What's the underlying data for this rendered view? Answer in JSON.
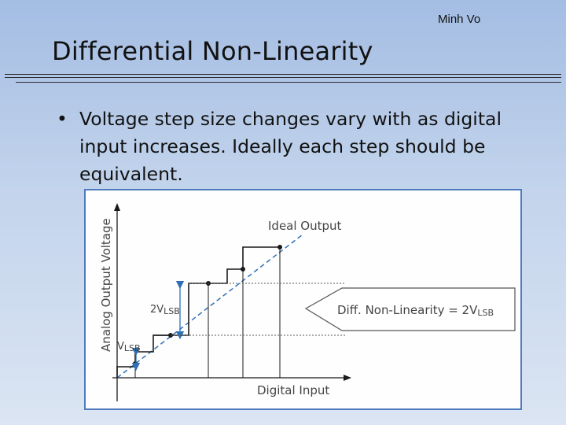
{
  "slide": {
    "author": "Minh Vo",
    "title": "Differential Non-Linearity",
    "bullet": "Voltage step size changes vary with as digital input increases. Ideally each step should be equivalent.",
    "bullet_symbol": "•"
  },
  "diagram": {
    "y_axis_label": "Analog Output Voltage",
    "x_axis_label": "Digital Input",
    "ideal_output_label": "Ideal Output",
    "two_vlsb_label": {
      "main": "2V",
      "sub": "LSB"
    },
    "vlsb_label": {
      "main": "V",
      "sub": "LSB"
    },
    "dnl_label": {
      "main": "Diff. Non-Linearity = 2V",
      "sub": "LSB"
    },
    "colors": {
      "line": "#1a1a1a",
      "arrow": "#2f6fb5",
      "border": "#4f7bbf",
      "text": "#444444"
    }
  }
}
